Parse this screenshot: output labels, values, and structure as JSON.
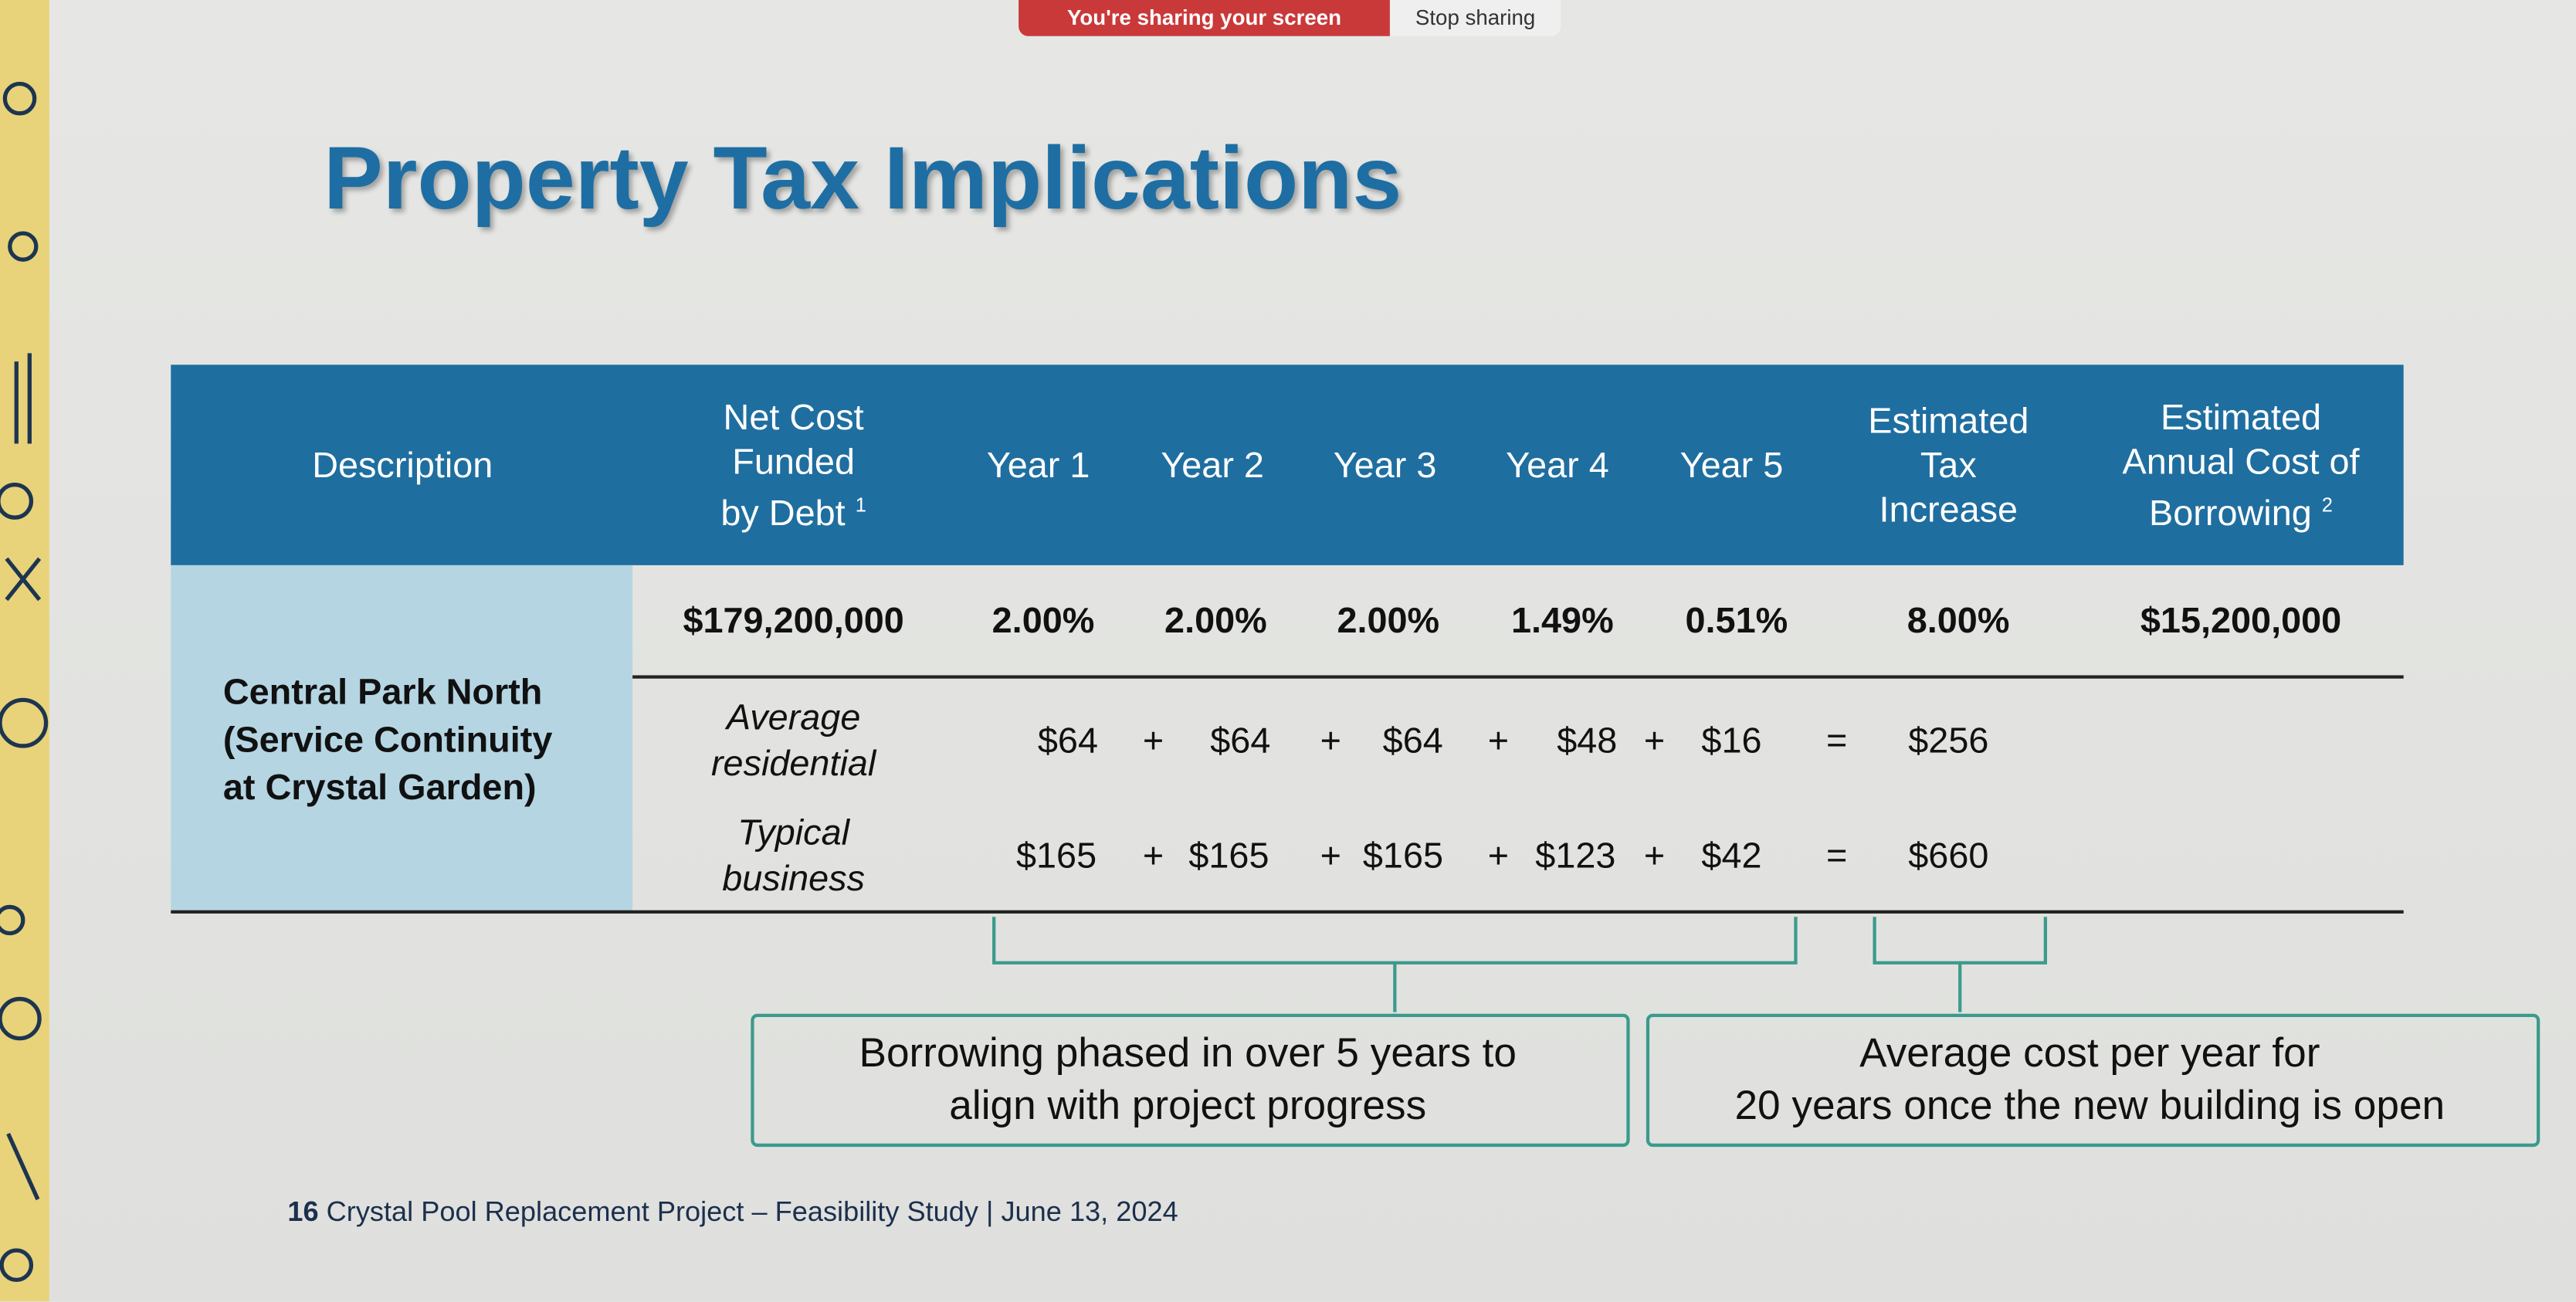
{
  "sharing_bar": {
    "status": "You're sharing your screen",
    "button": "Stop sharing"
  },
  "slide": {
    "title": "Property Tax Implications",
    "table": {
      "headers": [
        {
          "lines": [
            "Description"
          ]
        },
        {
          "lines": [
            "Net Cost",
            "Funded",
            "by Debt"
          ],
          "note": "1"
        },
        {
          "lines": [
            "Year 1"
          ]
        },
        {
          "lines": [
            "Year 2"
          ]
        },
        {
          "lines": [
            "Year 3"
          ]
        },
        {
          "lines": [
            "Year 4"
          ]
        },
        {
          "lines": [
            "Year 5"
          ]
        },
        {
          "lines": [
            "Estimated",
            "Tax",
            "Increase"
          ]
        },
        {
          "lines": [
            "Estimated",
            "Annual Cost of",
            "Borrowing"
          ],
          "note": "2"
        }
      ],
      "description": {
        "lines": [
          "Central Park North",
          "(Service Continuity",
          "at Crystal Garden)"
        ]
      },
      "summary_row": [
        "$179,200,000",
        "2.00%",
        "2.00%",
        "2.00%",
        "1.49%",
        "0.51%",
        "8.00%",
        "$15,200,000"
      ],
      "detail_rows": [
        {
          "label": [
            "Average",
            "residential"
          ],
          "values": [
            "$64",
            "$64",
            "$64",
            "$48",
            "$16",
            "$256"
          ],
          "operators": [
            "+",
            "+",
            "+",
            "+",
            "="
          ]
        },
        {
          "label": [
            "Typical",
            "business"
          ],
          "values": [
            "$165",
            "$165",
            "$165",
            "$123",
            "$42",
            "$660"
          ],
          "operators": [
            "+",
            "+",
            "+",
            "+",
            "="
          ]
        }
      ]
    },
    "callouts": [
      {
        "lines": [
          "Borrowing phased in over 5 years to",
          "align with project progress"
        ]
      },
      {
        "lines": [
          "Average cost per year for",
          "20 years once the new building is open"
        ]
      }
    ],
    "footer": {
      "page": "16",
      "text": "Crystal Pool Replacement Project – Feasibility Study | June 13, 2024"
    }
  }
}
